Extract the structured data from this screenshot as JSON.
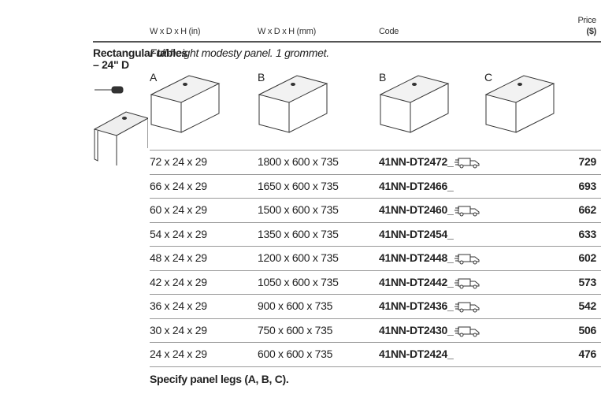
{
  "header": {
    "columns": [
      "W x D x H (in)",
      "W x D x H (mm)",
      "Code"
    ],
    "price": [
      "Price",
      "($)"
    ]
  },
  "section": {
    "title": [
      "Rectangular tables",
      "– 24\" D"
    ],
    "note": "Full-height modesty panel. 1 grommet.",
    "legs": [
      "A",
      "B",
      "B",
      "C"
    ]
  },
  "table": {
    "rows": [
      {
        "in": "72 x 24 x 29",
        "mm": "1800 x 600 x 735",
        "code": "41NN-DT2472_",
        "quickship": true,
        "price": 729
      },
      {
        "in": "66 x 24 x 29",
        "mm": "1650 x 600 x 735",
        "code": "41NN-DT2466_",
        "quickship": false,
        "price": 693
      },
      {
        "in": "60 x 24 x 29",
        "mm": "1500 x 600 x 735",
        "code": "41NN-DT2460_",
        "quickship": true,
        "price": 662
      },
      {
        "in": "54 x 24 x 29",
        "mm": "1350 x 600 x 735",
        "code": "41NN-DT2454_",
        "quickship": false,
        "price": 633
      },
      {
        "in": "48 x 24 x 29",
        "mm": "1200 x 600 x 735",
        "code": "41NN-DT2448_",
        "quickship": true,
        "price": 602
      },
      {
        "in": "42 x 24 x 29",
        "mm": "1050 x 600 x 735",
        "code": "41NN-DT2442_",
        "quickship": true,
        "price": 573
      },
      {
        "in": "36 x 24 x 29",
        "mm": "900 x 600 x 735",
        "code": "41NN-DT2436_",
        "quickship": true,
        "price": 542
      },
      {
        "in": "30 x 24 x 29",
        "mm": "750 x 600 x 735",
        "code": "41NN-DT2430_",
        "quickship": true,
        "price": 506
      },
      {
        "in": "24 x 24 x 29",
        "mm": "600 x 600 x 735",
        "code": "41NN-DT2424_",
        "quickship": false,
        "price": 476
      }
    ]
  },
  "footer": "Specify panel legs (A, B, C)."
}
